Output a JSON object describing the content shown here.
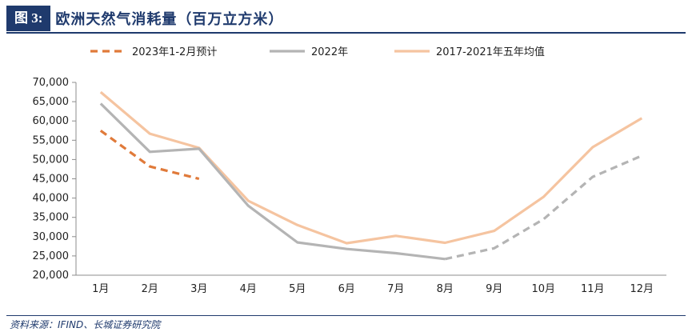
{
  "figure": {
    "number": "图 3:",
    "title": "欧洲天然气消耗量（百万立方米）",
    "source": "资料来源：IFIND、长城证券研究院"
  },
  "chart_data": {
    "type": "line",
    "title": "欧洲天然气消耗量（百万立方米）",
    "categories": [
      "1月",
      "2月",
      "3月",
      "4月",
      "5月",
      "6月",
      "7月",
      "8月",
      "9月",
      "10月",
      "11月",
      "12月"
    ],
    "ylim": [
      20000,
      70000
    ],
    "yticks": [
      20000,
      25000,
      30000,
      35000,
      40000,
      45000,
      50000,
      55000,
      60000,
      65000,
      70000
    ],
    "ytick_labels": [
      "20,000",
      "25,000",
      "30,000",
      "35,000",
      "40,000",
      "45,000",
      "50,000",
      "55,000",
      "60,000",
      "65,000",
      "70,000"
    ],
    "grid": false,
    "legend_position": "top",
    "series": [
      {
        "name": "2023年1-2月预计",
        "color": "#e07a3a",
        "dash": true,
        "values": [
          57500,
          48200,
          45000,
          null,
          null,
          null,
          null,
          null,
          null,
          null,
          null,
          null
        ]
      },
      {
        "name": "2022年",
        "color": "#b4b4b4",
        "dash": false,
        "dashed_from_index": 7,
        "values": [
          64500,
          52000,
          52800,
          38000,
          28500,
          26800,
          25700,
          24200,
          27000,
          34500,
          45500,
          51000
        ]
      },
      {
        "name": "2017-2021年五年均值",
        "color": "#f5c4a0",
        "dash": false,
        "values": [
          67500,
          56700,
          53000,
          39300,
          33000,
          28300,
          30200,
          28400,
          31500,
          40300,
          53200,
          60700
        ]
      }
    ]
  }
}
